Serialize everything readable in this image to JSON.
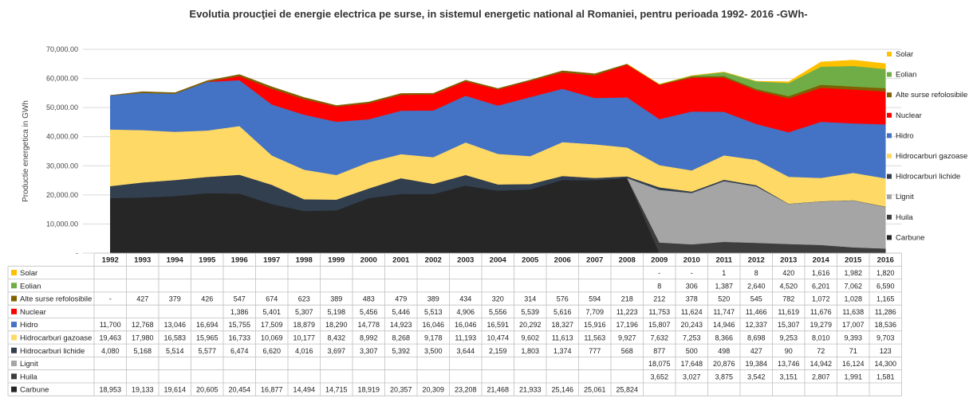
{
  "chart_data": {
    "type": "area",
    "title": "Evolutia proucţiei de energie electrica pe surse, in sistemul energetic national al Romaniei, pentru perioada 1992- 2016 -GWh-",
    "ylabel": "Productie energetica in GWh",
    "ylim": [
      0,
      70000
    ],
    "yticks": [
      "-",
      "10,000.00",
      "20,000.00",
      "30,000.00",
      "40,000.00",
      "50,000.00",
      "60,000.00",
      "70,000.00"
    ],
    "grid": true,
    "legend_position": "right",
    "x": [
      "1992",
      "1993",
      "1994",
      "1995",
      "1996",
      "1997",
      "1998",
      "1999",
      "2000",
      "2001",
      "2002",
      "2003",
      "2004",
      "2005",
      "2006",
      "2007",
      "2008",
      "2009",
      "2010",
      "2011",
      "2012",
      "2013",
      "2014",
      "2015",
      "2016"
    ],
    "series": [
      {
        "name": "Carbune",
        "color": "#262626",
        "values": [
          18953,
          19133,
          19614,
          20605,
          20454,
          16877,
          14494,
          14715,
          18919,
          20357,
          20309,
          23208,
          21468,
          21933,
          25146,
          25061,
          25824,
          null,
          null,
          null,
          null,
          null,
          null,
          null,
          null
        ],
        "labels": [
          "18,953",
          "19,133",
          "19,614",
          "20,605",
          "20,454",
          "16,877",
          "14,494",
          "14,715",
          "18,919",
          "20,357",
          "20,309",
          "23,208",
          "21,468",
          "21,933",
          "25,146",
          "25,061",
          "25,824",
          "",
          "",
          "",
          "",
          "",
          "",
          "",
          ""
        ]
      },
      {
        "name": "Huila",
        "color": "#3d3d3d",
        "values": [
          null,
          null,
          null,
          null,
          null,
          null,
          null,
          null,
          null,
          null,
          null,
          null,
          null,
          null,
          null,
          null,
          null,
          3652,
          3027,
          3875,
          3542,
          3151,
          2807,
          1991,
          1581
        ],
        "labels": [
          "",
          "",
          "",
          "",
          "",
          "",
          "",
          "",
          "",
          "",
          "",
          "",
          "",
          "",
          "",
          "",
          "",
          "3,652",
          "3,027",
          "3,875",
          "3,542",
          "3,151",
          "2,807",
          "1,991",
          "1,581"
        ]
      },
      {
        "name": "Lignit",
        "color": "#a5a5a5",
        "values": [
          null,
          null,
          null,
          null,
          null,
          null,
          null,
          null,
          null,
          null,
          null,
          null,
          null,
          null,
          null,
          null,
          null,
          18075,
          17648,
          20876,
          19384,
          13746,
          14942,
          16124,
          14300
        ],
        "labels": [
          "",
          "",
          "",
          "",
          "",
          "",
          "",
          "",
          "",
          "",
          "",
          "",
          "",
          "",
          "",
          "",
          "",
          "18,075",
          "17,648",
          "20,876",
          "19,384",
          "13,746",
          "14,942",
          "16,124",
          "14,300"
        ]
      },
      {
        "name": "Hidrocarburi lichide",
        "color": "#323f4f",
        "values": [
          4080,
          5168,
          5514,
          5577,
          6474,
          6620,
          4016,
          3697,
          3307,
          5392,
          3500,
          3644,
          2159,
          1803,
          1374,
          777,
          568,
          877,
          500,
          498,
          427,
          90,
          72,
          71,
          123
        ],
        "labels": [
          "4,080",
          "5,168",
          "5,514",
          "5,577",
          "6,474",
          "6,620",
          "4,016",
          "3,697",
          "3,307",
          "5,392",
          "3,500",
          "3,644",
          "2,159",
          "1,803",
          "1,374",
          "777",
          "568",
          "877",
          "500",
          "498",
          "427",
          "90",
          "72",
          "71",
          "123"
        ]
      },
      {
        "name": "Hidrocarburi gazoase",
        "color": "#ffd966",
        "values": [
          19463,
          17980,
          16583,
          15965,
          16733,
          10069,
          10177,
          8432,
          8992,
          8268,
          9178,
          11193,
          10474,
          9602,
          11613,
          11563,
          9927,
          7632,
          7253,
          8366,
          8698,
          9253,
          8010,
          9393,
          9703
        ],
        "labels": [
          "19,463",
          "17,980",
          "16,583",
          "15,965",
          "16,733",
          "10,069",
          "10,177",
          "8,432",
          "8,992",
          "8,268",
          "9,178",
          "11,193",
          "10,474",
          "9,602",
          "11,613",
          "11,563",
          "9,927",
          "7,632",
          "7,253",
          "8,366",
          "8,698",
          "9,253",
          "8,010",
          "9,393",
          "9,703"
        ]
      },
      {
        "name": "Hidro",
        "color": "#4472c4",
        "values": [
          11700,
          12768,
          13046,
          16694,
          15755,
          17509,
          18879,
          18290,
          14778,
          14923,
          16046,
          16046,
          16591,
          20292,
          18327,
          15916,
          17196,
          15807,
          20243,
          14946,
          12337,
          15307,
          19279,
          17007,
          18536
        ],
        "labels": [
          "11,700",
          "12,768",
          "13,046",
          "16,694",
          "15,755",
          "17,509",
          "18,879",
          "18,290",
          "14,778",
          "14,923",
          "16,046",
          "16,046",
          "16,591",
          "20,292",
          "18,327",
          "15,916",
          "17,196",
          "15,807",
          "20,243",
          "14,946",
          "12,337",
          "15,307",
          "19,279",
          "17,007",
          "18,536"
        ]
      },
      {
        "name": "Nuclear",
        "color": "#ff0000",
        "values": [
          null,
          null,
          null,
          null,
          1386,
          5401,
          5307,
          5198,
          5456,
          5446,
          5513,
          4906,
          5556,
          5539,
          5616,
          7709,
          11223,
          11753,
          11624,
          11747,
          11466,
          11619,
          11676,
          11638,
          11286
        ],
        "labels": [
          "",
          "",
          "",
          "",
          "1,386",
          "5,401",
          "5,307",
          "5,198",
          "5,456",
          "5,446",
          "5,513",
          "4,906",
          "5,556",
          "5,539",
          "5,616",
          "7,709",
          "11,223",
          "11,753",
          "11,624",
          "11,747",
          "11,466",
          "11,619",
          "11,676",
          "11,638",
          "11,286"
        ]
      },
      {
        "name": "Alte surse refolosibile",
        "color": "#806000",
        "values": [
          0,
          427,
          379,
          426,
          547,
          674,
          623,
          389,
          483,
          479,
          389,
          434,
          320,
          314,
          576,
          594,
          218,
          212,
          378,
          520,
          545,
          782,
          1072,
          1028,
          1165
        ],
        "labels": [
          "-",
          "427",
          "379",
          "426",
          "547",
          "674",
          "623",
          "389",
          "483",
          "479",
          "389",
          "434",
          "320",
          "314",
          "576",
          "594",
          "218",
          "212",
          "378",
          "520",
          "545",
          "782",
          "1,072",
          "1,028",
          "1,165"
        ]
      },
      {
        "name": "Eolian",
        "color": "#70ad47",
        "values": [
          null,
          null,
          null,
          null,
          null,
          null,
          null,
          null,
          null,
          null,
          null,
          null,
          null,
          null,
          null,
          null,
          null,
          8,
          306,
          1387,
          2640,
          4520,
          6201,
          7062,
          6590
        ],
        "labels": [
          "",
          "",
          "",
          "",
          "",
          "",
          "",
          "",
          "",
          "",
          "",
          "",
          "",
          "",
          "",
          "",
          "",
          "8",
          "306",
          "1,387",
          "2,640",
          "4,520",
          "6,201",
          "7,062",
          "6,590"
        ]
      },
      {
        "name": "Solar",
        "color": "#ffc000",
        "values": [
          null,
          null,
          null,
          null,
          null,
          null,
          null,
          null,
          null,
          null,
          null,
          null,
          null,
          null,
          null,
          null,
          null,
          0,
          0,
          1,
          8,
          420,
          1616,
          1982,
          1820
        ],
        "labels": [
          "",
          "",
          "",
          "",
          "",
          "",
          "",
          "",
          "",
          "",
          "",
          "",
          "",
          "",
          "",
          "",
          "",
          "-",
          "-",
          "1",
          "8",
          "420",
          "1,616",
          "1,982",
          "1,820"
        ]
      }
    ]
  }
}
